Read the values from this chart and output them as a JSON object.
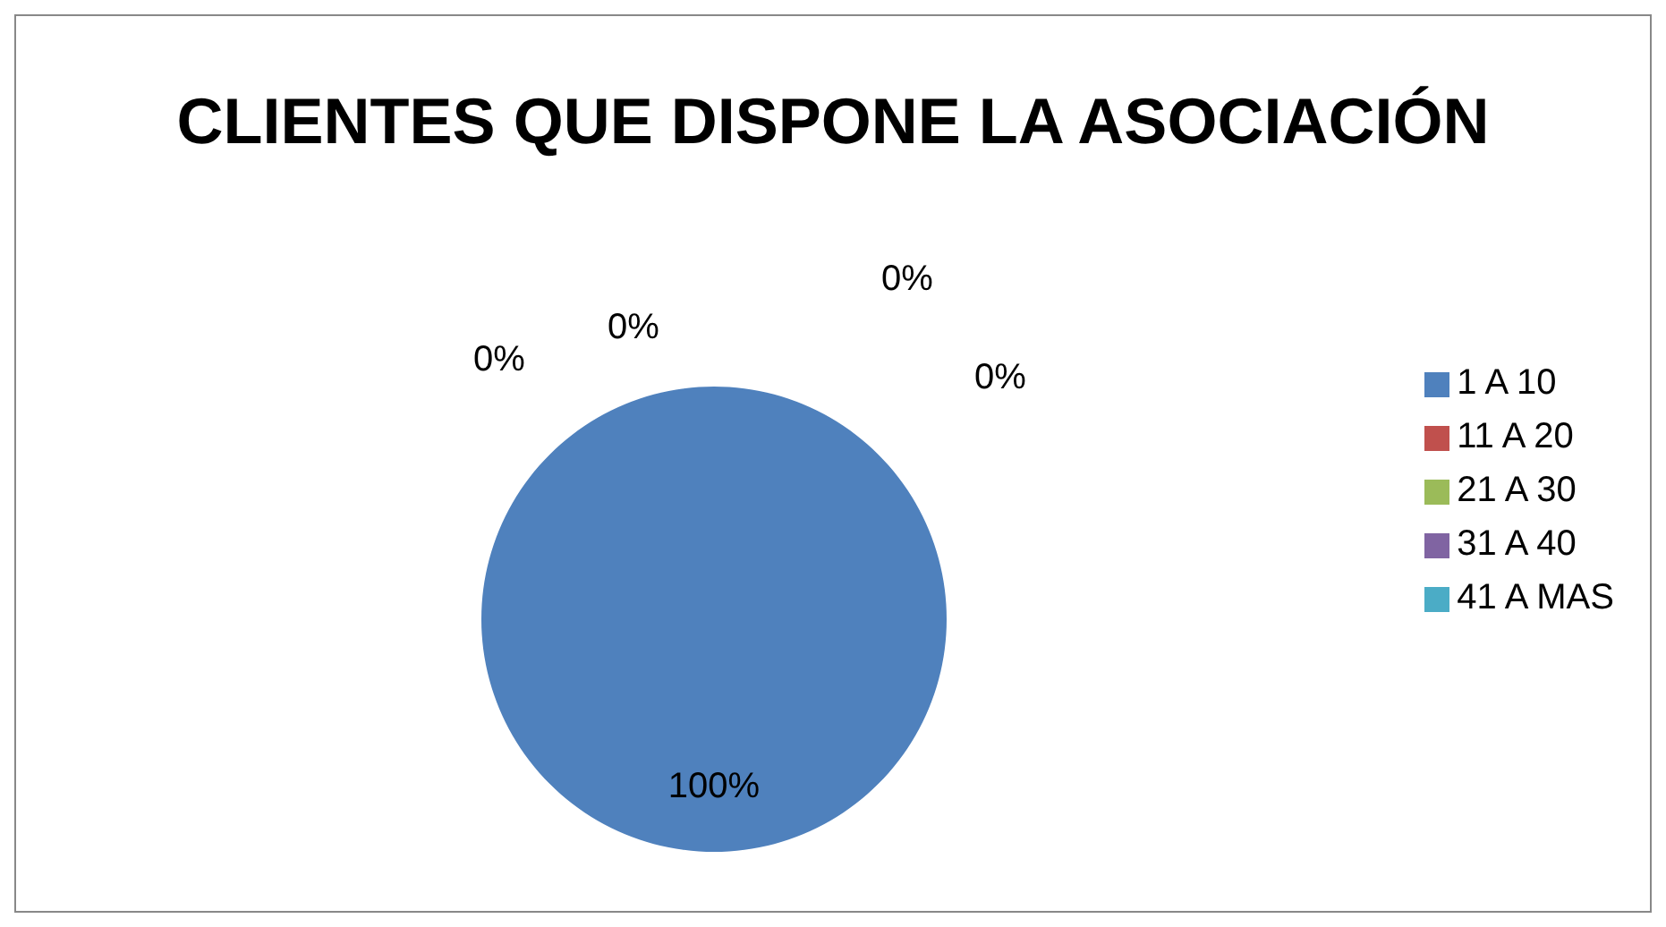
{
  "chart_data": {
    "type": "pie",
    "title": "CLIENTES QUE DISPONE LA ASOCIACIÓN",
    "categories": [
      "1 A 10",
      "11 A 20",
      "21 A 30",
      "31 A 40",
      "41 A MAS"
    ],
    "values": [
      100,
      0,
      0,
      0,
      0
    ],
    "value_labels": [
      "100%",
      "0%",
      "0%",
      "0%",
      "0%"
    ],
    "colors": [
      "#4f81bd",
      "#c0504d",
      "#9bbb59",
      "#8064a2",
      "#4bacc6"
    ],
    "legend": "right"
  }
}
